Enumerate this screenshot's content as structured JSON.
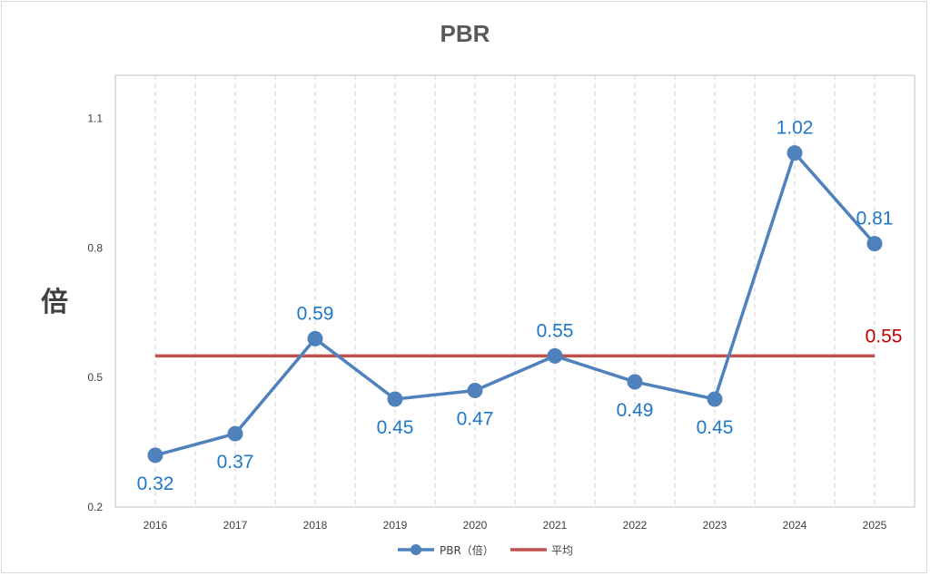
{
  "chart_data": {
    "type": "line",
    "title": "PBR",
    "ylabel": "倍",
    "xlabel": "",
    "categories": [
      "2016",
      "2017",
      "2018",
      "2019",
      "2020",
      "2021",
      "2022",
      "2023",
      "2024",
      "2025"
    ],
    "y_ticks": [
      "0.2",
      "0.5",
      "0.8",
      "1.1"
    ],
    "ylim": [
      0.2,
      1.2
    ],
    "grid": "vertical dashed",
    "legend_position": "bottom",
    "series": [
      {
        "name": "PBR（倍）",
        "values": [
          0.32,
          0.37,
          0.59,
          0.45,
          0.47,
          0.55,
          0.49,
          0.45,
          1.02,
          0.81
        ],
        "labels": [
          "0.32",
          "0.37",
          "0.59",
          "0.45",
          "0.47",
          "0.55",
          "0.49",
          "0.45",
          "1.02",
          "0.81"
        ],
        "color": "#4f81bd",
        "label_color": "#1f77c8"
      },
      {
        "name": "平均",
        "value": 0.55,
        "label": "0.55",
        "color": "#c0504d",
        "label_color": "#c00000"
      }
    ]
  }
}
